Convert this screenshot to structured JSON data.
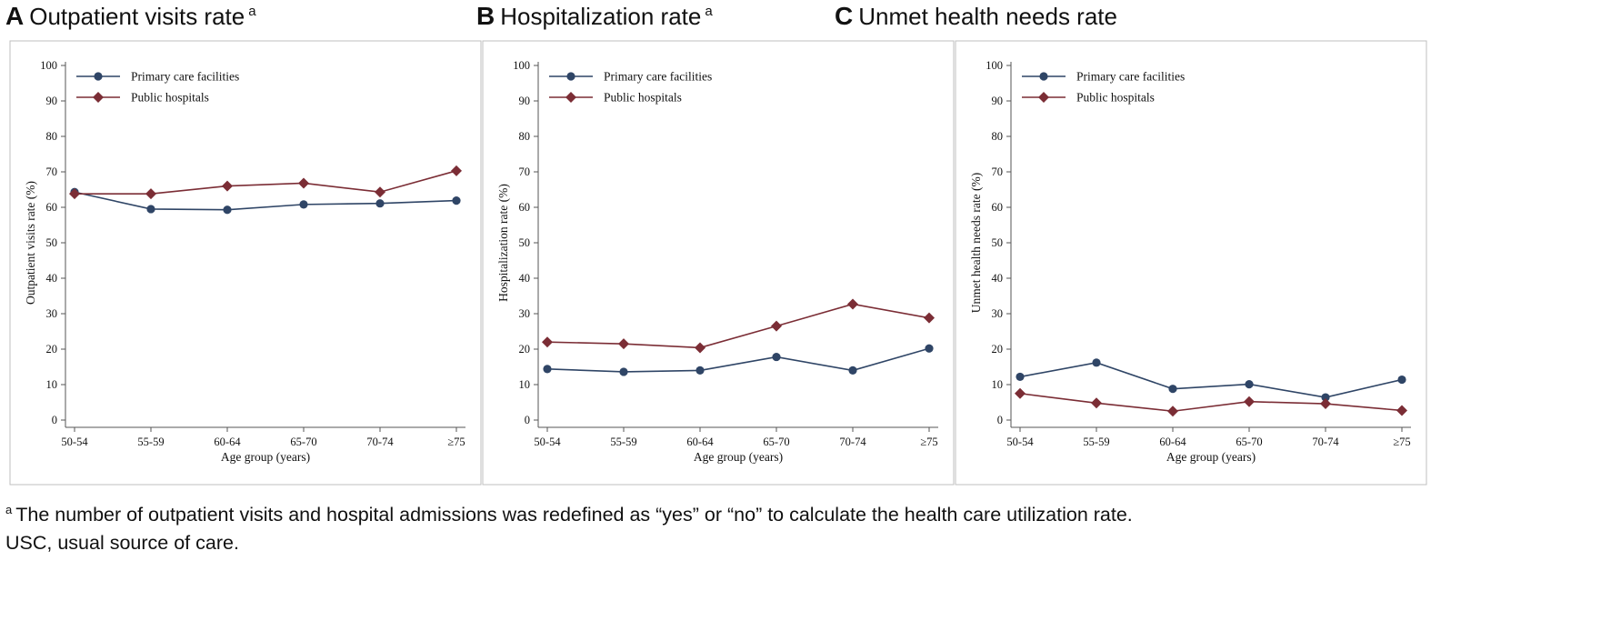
{
  "panels": [
    {
      "letter": "A",
      "title": "Outpatient visits rate",
      "superscript": "a"
    },
    {
      "letter": "B",
      "title": "Hospitalization rate",
      "superscript": "a"
    },
    {
      "letter": "C",
      "title": "Unmet health needs rate",
      "superscript": ""
    }
  ],
  "footnote": {
    "marker": "a",
    "line1": "The number of outpatient visits and hospital admissions was redefined as “yes” or “no” to calculate the health care utilization rate.",
    "line2": "USC, usual source of care."
  },
  "colors": {
    "primary": "#2f4566",
    "hospital": "#7b2d35",
    "frame": "#bfbfbf",
    "axis": "#555555"
  },
  "chart_data": [
    {
      "type": "line",
      "title": "Outpatient visits rate",
      "xlabel": "Age group (years)",
      "ylabel": "Outpatient visits rate (%)",
      "ylim": [
        0,
        100
      ],
      "yticks": [
        "0",
        "10",
        "20",
        "30",
        "40",
        "50",
        "60",
        "70",
        "80",
        "90",
        "100"
      ],
      "categories": [
        "50-54",
        "55-59",
        "60-64",
        "65-70",
        "70-74",
        "≥75"
      ],
      "legend_position": "top-left",
      "series": [
        {
          "name": "Primary care facilities",
          "marker": "circle",
          "values": [
            64.3,
            59.5,
            59.3,
            60.8,
            61.1,
            61.9
          ]
        },
        {
          "name": "Public hospitals",
          "marker": "diamond",
          "values": [
            63.8,
            63.8,
            66.0,
            66.8,
            64.3,
            70.3
          ]
        }
      ]
    },
    {
      "type": "line",
      "title": "Hospitalization rate",
      "xlabel": "Age group (years)",
      "ylabel": "Hospitalization rate (%)",
      "ylim": [
        0,
        100
      ],
      "yticks": [
        "0",
        "10",
        "20",
        "30",
        "40",
        "50",
        "60",
        "70",
        "80",
        "90",
        "100"
      ],
      "categories": [
        "50-54",
        "55-59",
        "60-64",
        "65-70",
        "70-74",
        "≥75"
      ],
      "legend_position": "top-left",
      "series": [
        {
          "name": "Primary care facilities",
          "marker": "circle",
          "values": [
            14.4,
            13.6,
            14.0,
            17.8,
            14.0,
            20.2
          ]
        },
        {
          "name": "Public hospitals",
          "marker": "diamond",
          "values": [
            22.0,
            21.5,
            20.4,
            26.5,
            32.7,
            28.8
          ]
        }
      ]
    },
    {
      "type": "line",
      "title": "Unmet health needs rate",
      "xlabel": "Age group (years)",
      "ylabel": "Unmet health needs rate (%)",
      "ylim": [
        0,
        100
      ],
      "yticks": [
        "0",
        "10",
        "20",
        "30",
        "40",
        "50",
        "60",
        "70",
        "80",
        "90",
        "100"
      ],
      "categories": [
        "50-54",
        "55-59",
        "60-64",
        "65-70",
        "70-74",
        "≥75"
      ],
      "legend_position": "top-left",
      "series": [
        {
          "name": "Primary care facilities",
          "marker": "circle",
          "values": [
            12.2,
            16.2,
            8.8,
            10.1,
            6.4,
            11.4
          ]
        },
        {
          "name": "Public hospitals",
          "marker": "diamond",
          "values": [
            7.5,
            4.8,
            2.5,
            5.2,
            4.6,
            2.7
          ]
        }
      ]
    }
  ]
}
